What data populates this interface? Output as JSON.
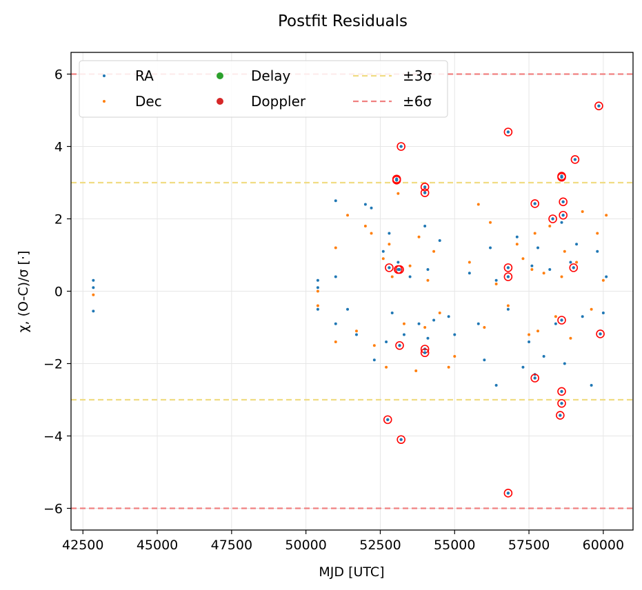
{
  "chart_data": {
    "type": "scatter",
    "title": "Postfit Residuals",
    "xlabel": "MJD [UTC]",
    "ylabel": "χ, (O-C)/σ [·]",
    "xlim": [
      42100,
      61000
    ],
    "ylim": [
      -6.6,
      6.6
    ],
    "xticks": [
      42500,
      45000,
      47500,
      50000,
      52500,
      55000,
      57500,
      60000
    ],
    "xtick_labels": [
      "42500",
      "45000",
      "47500",
      "50000",
      "52500",
      "55000",
      "57500",
      "60000"
    ],
    "yticks": [
      -6,
      -4,
      -2,
      0,
      2,
      4,
      6
    ],
    "ytick_labels": [
      "−6",
      "−4",
      "−2",
      "0",
      "2",
      "4",
      "6"
    ],
    "grid": true,
    "legend_placement": "top-left",
    "legend": [
      {
        "label": "RA",
        "kind": "dot",
        "color": "#1f77b4"
      },
      {
        "label": "Dec",
        "kind": "dot",
        "color": "#ff7f0e"
      },
      {
        "label": "Delay",
        "kind": "big-dot",
        "color": "#2ca02c"
      },
      {
        "label": "Doppler",
        "kind": "big-dot",
        "color": "#d62728"
      },
      {
        "label": "±3σ",
        "kind": "dash",
        "color": "#f0dc82"
      },
      {
        "label": "±6σ",
        "kind": "dash",
        "color": "#f08080"
      }
    ],
    "reference_lines": [
      {
        "name": "±3σ",
        "values": [
          3,
          -3
        ],
        "color": "#f0dc82"
      },
      {
        "name": "±6σ",
        "values": [
          6,
          -6
        ],
        "color": "#f08080"
      }
    ],
    "series": [
      {
        "name": "RA",
        "color": "#1f77b4",
        "x": [
          42850,
          42850,
          42850,
          50400,
          50400,
          50400,
          51000,
          51000,
          51000,
          51400,
          51700,
          52000,
          52200,
          52300,
          52600,
          52700,
          52800,
          52900,
          53100,
          53300,
          53500,
          53800,
          54000,
          54100,
          54100,
          54300,
          54500,
          54800,
          55000,
          55500,
          55800,
          56000,
          56200,
          56400,
          56400,
          56800,
          57100,
          57300,
          57500,
          57600,
          57700,
          57800,
          58000,
          58200,
          58400,
          58600,
          58700,
          58900,
          59100,
          59300,
          59600,
          59800,
          60000,
          60100
        ],
        "y": [
          0.3,
          -0.55,
          0.1,
          0.3,
          -0.5,
          0.1,
          2.5,
          -0.9,
          0.4,
          -0.5,
          -1.2,
          2.4,
          2.3,
          -1.9,
          1.1,
          -1.4,
          1.6,
          -0.6,
          0.8,
          -1.2,
          0.4,
          -0.9,
          1.8,
          -1.3,
          0.6,
          -0.8,
          1.4,
          -0.7,
          -1.2,
          0.5,
          -0.9,
          -1.9,
          1.2,
          -2.6,
          0.3,
          -0.5,
          1.5,
          -2.1,
          -1.4,
          0.7,
          -2.3,
          1.2,
          -1.8,
          0.6,
          -0.9,
          1.9,
          -2.0,
          0.8,
          1.3,
          -0.7,
          -2.6,
          1.1,
          -0.6,
          0.4
        ]
      },
      {
        "name": "Dec",
        "color": "#ff7f0e",
        "x": [
          42850,
          50400,
          50400,
          51000,
          51000,
          51400,
          51700,
          52000,
          52200,
          52300,
          52600,
          52700,
          52800,
          52900,
          53100,
          53300,
          53500,
          53700,
          53800,
          54000,
          54100,
          54300,
          54500,
          54800,
          55000,
          55500,
          55800,
          56000,
          56200,
          56400,
          56800,
          57100,
          57300,
          57500,
          57600,
          57700,
          57800,
          58000,
          58200,
          58400,
          58600,
          58700,
          58900,
          59100,
          59300,
          59600,
          59800,
          60000,
          60100
        ],
        "y": [
          -0.1,
          0.0,
          -0.4,
          1.2,
          -1.4,
          2.1,
          -1.1,
          1.8,
          1.6,
          -1.5,
          0.9,
          -2.1,
          1.3,
          0.4,
          2.7,
          -0.9,
          0.7,
          -2.2,
          1.5,
          -1.0,
          0.3,
          1.1,
          -0.6,
          -2.1,
          -1.8,
          0.8,
          2.4,
          -1.0,
          1.9,
          0.2,
          -0.4,
          1.3,
          0.9,
          -1.2,
          0.6,
          1.6,
          -1.1,
          0.5,
          1.8,
          -0.7,
          0.4,
          1.1,
          -1.3,
          0.8,
          2.2,
          -0.5,
          1.6,
          0.3,
          2.1
        ]
      },
      {
        "name": "Doppler",
        "color": "#d62728",
        "x": [
          53200,
          53050,
          53050,
          52800,
          53150,
          53150,
          53200,
          54000,
          54000,
          54000,
          54000,
          52750,
          53100,
          56800,
          56800,
          56800,
          56800,
          57700,
          57700,
          58300,
          58600,
          58600,
          58650,
          58650,
          58600,
          58600,
          58600,
          58550,
          59000,
          59050,
          59850,
          59900
        ],
        "y": [
          4.0,
          3.1,
          3.07,
          0.65,
          0.6,
          -1.5,
          -4.1,
          2.88,
          2.72,
          -1.6,
          -1.7,
          -3.55,
          0.6,
          4.4,
          0.65,
          0.4,
          -5.58,
          2.42,
          -2.4,
          2.0,
          3.18,
          3.15,
          2.47,
          2.1,
          -0.8,
          -2.77,
          -3.1,
          -3.43,
          0.65,
          3.64,
          5.12,
          -1.18
        ]
      }
    ]
  }
}
